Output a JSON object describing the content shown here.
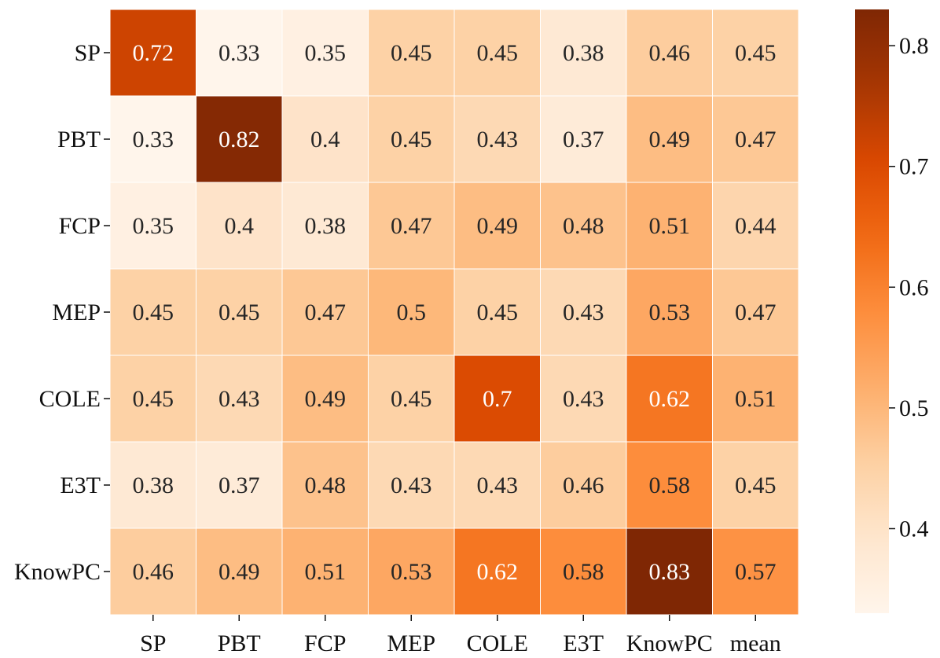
{
  "chart_data": {
    "type": "heatmap",
    "title": "",
    "xlabel": "",
    "ylabel": "",
    "row_labels": [
      "SP",
      "PBT",
      "FCP",
      "MEP",
      "COLE",
      "E3T",
      "KnowPC"
    ],
    "col_labels": [
      "SP",
      "PBT",
      "FCP",
      "MEP",
      "COLE",
      "E3T",
      "KnowPC",
      "mean"
    ],
    "values": [
      [
        0.72,
        0.33,
        0.35,
        0.45,
        0.45,
        0.38,
        0.46,
        0.45
      ],
      [
        0.33,
        0.82,
        0.4,
        0.45,
        0.43,
        0.37,
        0.49,
        0.47
      ],
      [
        0.35,
        0.4,
        0.38,
        0.47,
        0.49,
        0.48,
        0.51,
        0.44
      ],
      [
        0.45,
        0.45,
        0.47,
        0.5,
        0.45,
        0.43,
        0.53,
        0.47
      ],
      [
        0.45,
        0.43,
        0.49,
        0.45,
        0.7,
        0.43,
        0.62,
        0.51
      ],
      [
        0.38,
        0.37,
        0.48,
        0.43,
        0.43,
        0.46,
        0.58,
        0.45
      ],
      [
        0.46,
        0.49,
        0.51,
        0.53,
        0.62,
        0.58,
        0.83,
        0.57
      ]
    ],
    "colormap": "Oranges",
    "color_range": [
      0.33,
      0.83
    ],
    "colorbar_ticks": [
      "0.4",
      "0.5",
      "0.6",
      "0.7",
      "0.8"
    ],
    "colorbar_tick_values": [
      0.4,
      0.5,
      0.6,
      0.7,
      0.8
    ],
    "annotated": true,
    "colors": {
      "low": "#fff5eb",
      "high": "#7f2704",
      "cell_border": "#ffffff",
      "text_dark": "#262626",
      "text_light": "#ffffff"
    }
  }
}
